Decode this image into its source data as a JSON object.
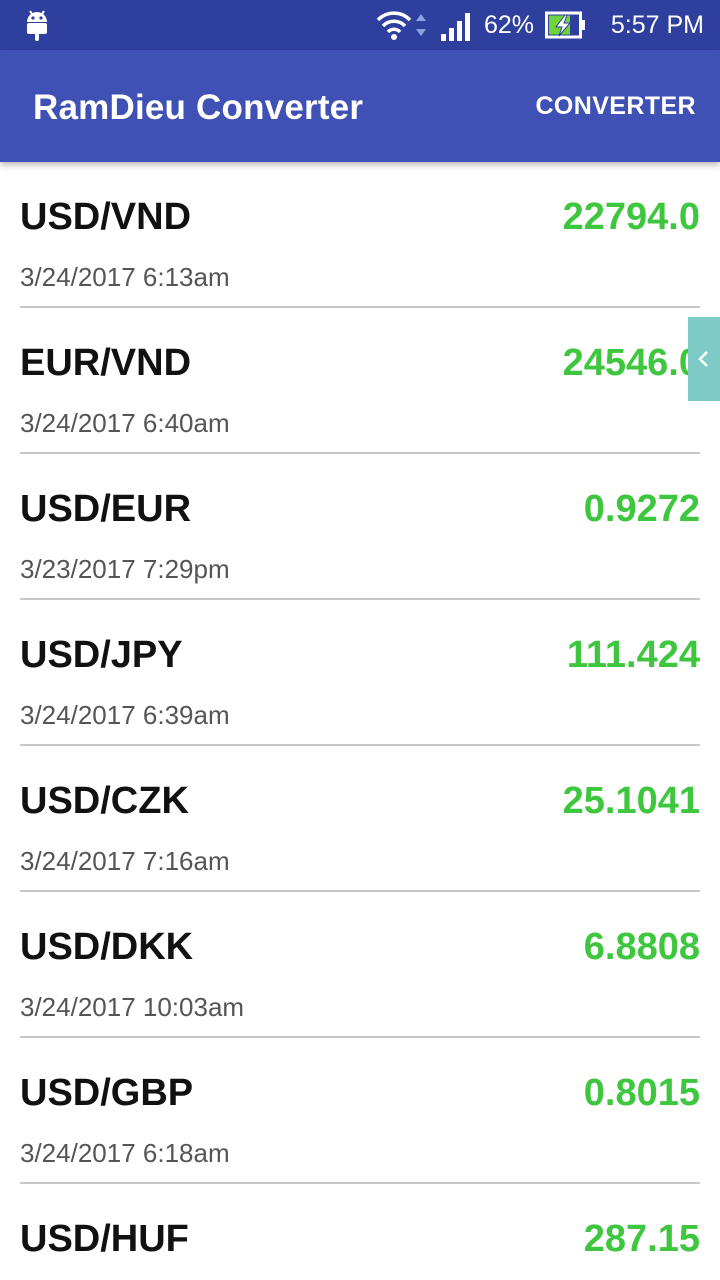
{
  "status_bar": {
    "battery_percent": "62%",
    "time": "5:57 PM",
    "icons": [
      "android-icon",
      "wifi-icon",
      "data-arrows-icon",
      "signal-icon",
      "battery-charging-icon"
    ]
  },
  "app_bar": {
    "title": "RamDieu Converter",
    "action_label": "CONVERTER"
  },
  "rates": [
    {
      "pair": "USD/VND",
      "value": "22794.0",
      "time": "3/24/2017 6:13am"
    },
    {
      "pair": "EUR/VND",
      "value": "24546.0",
      "time": "3/24/2017 6:40am"
    },
    {
      "pair": "USD/EUR",
      "value": "0.9272",
      "time": "3/23/2017 7:29pm"
    },
    {
      "pair": "USD/JPY",
      "value": "111.424",
      "time": "3/24/2017 6:39am"
    },
    {
      "pair": "USD/CZK",
      "value": "25.1041",
      "time": "3/24/2017 7:16am"
    },
    {
      "pair": "USD/DKK",
      "value": "6.8808",
      "time": "3/24/2017 10:03am"
    },
    {
      "pair": "USD/GBP",
      "value": "0.8015",
      "time": "3/24/2017 6:18am"
    },
    {
      "pair": "USD/HUF",
      "value": "287.15",
      "time": ""
    }
  ],
  "colors": {
    "status_bar": "#2f3f9e",
    "app_bar": "#3f51b5",
    "rate_value": "#3ec73e",
    "side_handle": "#7ecac7",
    "battery_fill": "#6ed43a"
  },
  "side_handle": {
    "icon": "chevron-left-icon"
  }
}
